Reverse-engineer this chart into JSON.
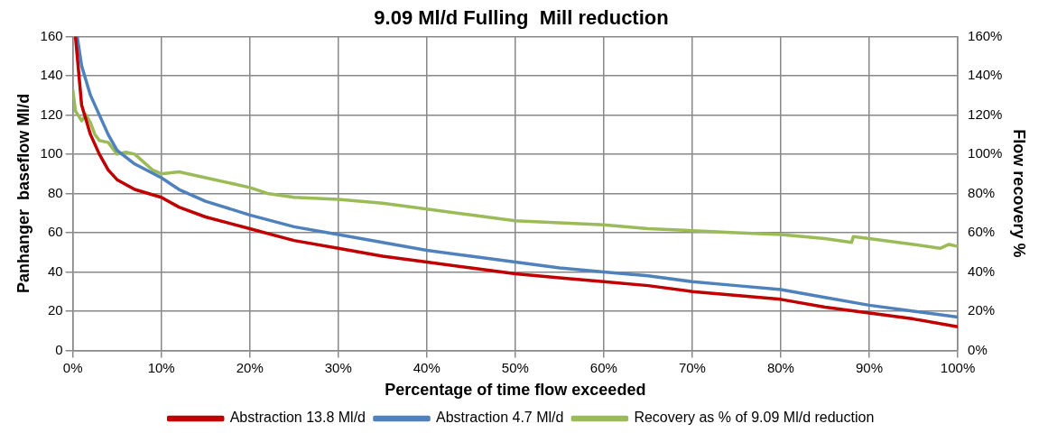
{
  "chart_data": {
    "type": "line",
    "title": "9.09 Ml/d Fulling  Mill reduction",
    "xlabel": "Percentage of time flow exceeded",
    "ylabel": "Panhanger  baseflow Ml/d",
    "y2label": "Flow recovery %",
    "xlim": [
      0,
      100
    ],
    "xticks": [
      {
        "value": 0,
        "label": "0%"
      },
      {
        "value": 10,
        "label": "10%"
      },
      {
        "value": 20,
        "label": "20%"
      },
      {
        "value": 30,
        "label": "30%"
      },
      {
        "value": 40,
        "label": "40%"
      },
      {
        "value": 50,
        "label": "50%"
      },
      {
        "value": 60,
        "label": "60%"
      },
      {
        "value": 70,
        "label": "70%"
      },
      {
        "value": 80,
        "label": "80%"
      },
      {
        "value": 90,
        "label": "90%"
      },
      {
        "value": 100,
        "label": "100%"
      }
    ],
    "ylim": [
      0,
      160
    ],
    "yticks": [
      0,
      20,
      40,
      60,
      80,
      100,
      120,
      140,
      160
    ],
    "y2lim": [
      0,
      160
    ],
    "y2ticks": [
      {
        "value": 0,
        "label": "0%"
      },
      {
        "value": 20,
        "label": "20%"
      },
      {
        "value": 40,
        "label": "40%"
      },
      {
        "value": 60,
        "label": "60%"
      },
      {
        "value": 80,
        "label": "80%"
      },
      {
        "value": 100,
        "label": "100%"
      },
      {
        "value": 120,
        "label": "120%"
      },
      {
        "value": 140,
        "label": "140%"
      },
      {
        "value": 160,
        "label": "160%"
      }
    ],
    "grid": true,
    "legend": "bottom",
    "marker": "none",
    "line_style": "solid",
    "series": [
      {
        "name": "Abstraction 13.8 Ml/d",
        "color": "#c00000",
        "x": [
          0.3,
          1,
          2,
          3,
          4,
          5,
          7,
          10,
          12,
          15,
          20,
          25,
          30,
          35,
          40,
          45,
          50,
          55,
          60,
          65,
          70,
          75,
          80,
          85,
          90,
          95,
          100
        ],
        "values": [
          160,
          125,
          110,
          100,
          92,
          87,
          82,
          78,
          73,
          68,
          62,
          56,
          52,
          48,
          45,
          42,
          39,
          37,
          35,
          33,
          30,
          28,
          26,
          22,
          19,
          16,
          12
        ]
      },
      {
        "name": "Abstraction 4.7 Ml/d",
        "color": "#4f81bd",
        "x": [
          0.5,
          1,
          2,
          3,
          4,
          5,
          7,
          10,
          12,
          15,
          20,
          25,
          30,
          35,
          40,
          45,
          50,
          55,
          60,
          65,
          70,
          75,
          80,
          85,
          90,
          95,
          100
        ],
        "values": [
          160,
          145,
          130,
          120,
          110,
          102,
          95,
          88,
          82,
          76,
          69,
          63,
          59,
          55,
          51,
          48,
          45,
          42,
          40,
          38,
          35,
          33,
          31,
          27,
          23,
          20,
          17
        ]
      },
      {
        "name": "Recovery as % of 9.09 Ml/d reduction",
        "color": "#9bbb59",
        "axis": "y2",
        "x": [
          0,
          0.3,
          1,
          1.5,
          2,
          2.5,
          3,
          4,
          5,
          6,
          7,
          8,
          9,
          10,
          12,
          15,
          18,
          20,
          22,
          25,
          30,
          35,
          40,
          45,
          50,
          55,
          60,
          65,
          70,
          75,
          80,
          85,
          88,
          88.2,
          90,
          95,
          98,
          99,
          100
        ],
        "values": [
          133,
          122,
          117,
          120,
          116,
          110,
          107,
          106,
          100,
          101,
          100,
          96,
          92,
          90,
          91,
          88,
          85,
          83,
          80,
          78,
          77,
          75,
          72,
          69,
          66,
          65,
          64,
          62,
          61,
          60,
          59,
          57,
          55,
          58,
          57,
          54,
          52,
          54,
          53
        ]
      }
    ]
  }
}
